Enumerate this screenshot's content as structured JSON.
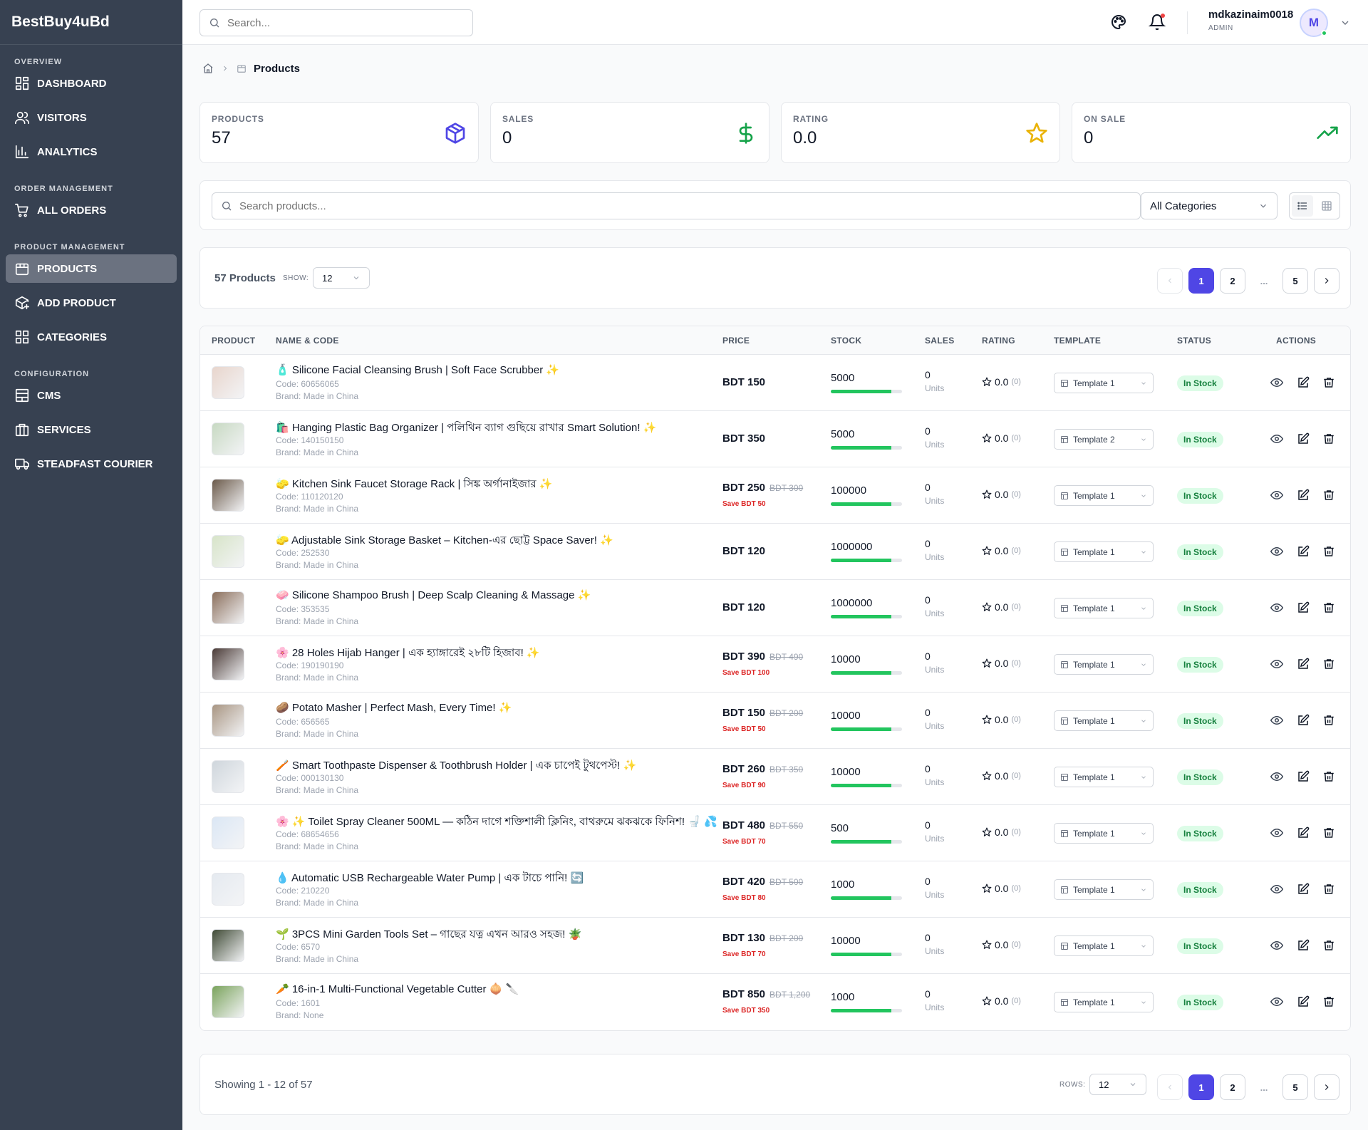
{
  "app": {
    "brand": "BestBuy4uBd"
  },
  "sidebar": {
    "sections": [
      {
        "title": "OVERVIEW",
        "items": [
          {
            "label": "DASHBOARD",
            "icon": "dashboard-icon"
          },
          {
            "label": "VISITORS",
            "icon": "users-icon"
          },
          {
            "label": "ANALYTICS",
            "icon": "bar-chart-icon"
          }
        ]
      },
      {
        "title": "ORDER MANAGEMENT",
        "items": [
          {
            "label": "ALL ORDERS",
            "icon": "cart-icon"
          }
        ]
      },
      {
        "title": "PRODUCT MANAGEMENT",
        "items": [
          {
            "label": "PRODUCTS",
            "icon": "package-icon",
            "active": true
          },
          {
            "label": "ADD PRODUCT",
            "icon": "package-plus-icon"
          },
          {
            "label": "CATEGORIES",
            "icon": "grid-icon"
          }
        ]
      },
      {
        "title": "CONFIGURATION",
        "items": [
          {
            "label": "CMS",
            "icon": "layout-icon"
          },
          {
            "label": "SERVICES",
            "icon": "store-icon"
          },
          {
            "label": "STEADFAST COURIER",
            "icon": "truck-icon"
          }
        ]
      }
    ]
  },
  "topbar": {
    "search_placeholder": "Search...",
    "user_name": "mdkazinaim0018",
    "user_role": "ADMIN",
    "avatar_initial": "M"
  },
  "breadcrumb": {
    "current": "Products"
  },
  "stats": [
    {
      "label": "PRODUCTS",
      "value": "57",
      "icon": "box-icon",
      "color": "#4f46e5"
    },
    {
      "label": "SALES",
      "value": "0",
      "icon": "dollar-icon",
      "color": "#16a34a"
    },
    {
      "label": "RATING",
      "value": "0.0",
      "icon": "star-icon",
      "color": "#eab308"
    },
    {
      "label": "ON SALE",
      "value": "0",
      "icon": "trending-up-icon",
      "color": "#16a34a"
    }
  ],
  "filters": {
    "search_placeholder": "Search products...",
    "category": "All Categories"
  },
  "pagination": {
    "count_label": "57 Products",
    "show_label": "SHOW:",
    "page_size": "12",
    "pages": [
      "1",
      "2",
      "...",
      "5"
    ],
    "current": "1"
  },
  "table": {
    "headers": [
      "PRODUCT",
      "NAME & CODE",
      "PRICE",
      "STOCK",
      "SALES",
      "RATING",
      "TEMPLATE",
      "STATUS",
      "ACTIONS"
    ],
    "rows": [
      {
        "name": "🧴 Silicone Facial Cleansing Brush | Soft Face Scrubber ✨",
        "code": "Code: 60656065",
        "brand": "Brand: Made in China",
        "price": "BDT 150",
        "old_price": "",
        "save": "",
        "stock": "5000",
        "stock_level": 0.85,
        "sales": "0",
        "units": "Units",
        "rating": "0.0",
        "rating_count": "(0)",
        "template": "Template 1",
        "status": "In Stock",
        "thumb": "#e8d5cc"
      },
      {
        "name": "🛍️ Hanging Plastic Bag Organizer | পলিথিন ব্যাগ গুছিয়ে রাখার Smart Solution! ✨",
        "code": "Code: 140150150",
        "brand": "Brand: Made in China",
        "price": "BDT 350",
        "old_price": "",
        "save": "",
        "stock": "5000",
        "stock_level": 0.85,
        "sales": "0",
        "units": "Units",
        "rating": "0.0",
        "rating_count": "(0)",
        "template": "Template 2",
        "status": "In Stock",
        "thumb": "#c7d9c2"
      },
      {
        "name": "🧽 Kitchen Sink Faucet Storage Rack | সিঙ্ক অর্গানাইজার ✨",
        "code": "Code: 110120120",
        "brand": "Brand: Made in China",
        "price": "BDT 250",
        "old_price": "BDT 300",
        "save": "Save BDT 50",
        "stock": "100000",
        "stock_level": 0.85,
        "sales": "0",
        "units": "Units",
        "rating": "0.0",
        "rating_count": "(0)",
        "template": "Template 1",
        "status": "In Stock",
        "thumb": "#6b5a4a"
      },
      {
        "name": "🧽 Adjustable Sink Storage Basket – Kitchen-এর ছোট্ট Space Saver! ✨",
        "code": "Code: 252530",
        "brand": "Brand: Made in China",
        "price": "BDT 120",
        "old_price": "",
        "save": "",
        "stock": "1000000",
        "stock_level": 0.85,
        "sales": "0",
        "units": "Units",
        "rating": "0.0",
        "rating_count": "(0)",
        "template": "Template 1",
        "status": "In Stock",
        "thumb": "#d7e4c8"
      },
      {
        "name": "🧼 Silicone Shampoo Brush | Deep Scalp Cleaning & Massage ✨",
        "code": "Code: 353535",
        "brand": "Brand: Made in China",
        "price": "BDT 120",
        "old_price": "",
        "save": "",
        "stock": "1000000",
        "stock_level": 0.85,
        "sales": "0",
        "units": "Units",
        "rating": "0.0",
        "rating_count": "(0)",
        "template": "Template 1",
        "status": "In Stock",
        "thumb": "#8b6f5c"
      },
      {
        "name": "🌸 28 Holes Hijab Hanger | এক হ্যাঙ্গারেই ২৮টি হিজাব! ✨",
        "code": "Code: 190190190",
        "brand": "Brand: Made in China",
        "price": "BDT 390",
        "old_price": "BDT 490",
        "save": "Save BDT 100",
        "stock": "10000",
        "stock_level": 0.85,
        "sales": "0",
        "units": "Units",
        "rating": "0.0",
        "rating_count": "(0)",
        "template": "Template 1",
        "status": "In Stock",
        "thumb": "#4a3a36"
      },
      {
        "name": "🥔 Potato Masher | Perfect Mash, Every Time! ✨",
        "code": "Code: 656565",
        "brand": "Brand: Made in China",
        "price": "BDT 150",
        "old_price": "BDT 200",
        "save": "Save BDT 50",
        "stock": "10000",
        "stock_level": 0.85,
        "sales": "0",
        "units": "Units",
        "rating": "0.0",
        "rating_count": "(0)",
        "template": "Template 1",
        "status": "In Stock",
        "thumb": "#a89582"
      },
      {
        "name": "🪥 Smart Toothpaste Dispenser & Toothbrush Holder | এক চাপেই টুথপেস্ট! ✨",
        "code": "Code: 000130130",
        "brand": "Brand: Made in China",
        "price": "BDT 260",
        "old_price": "BDT 350",
        "save": "Save BDT 90",
        "stock": "10000",
        "stock_level": 0.85,
        "sales": "0",
        "units": "Units",
        "rating": "0.0",
        "rating_count": "(0)",
        "template": "Template 1",
        "status": "In Stock",
        "thumb": "#cfd6dc"
      },
      {
        "name": "🌸 ✨ Toilet Spray Cleaner 500ML — কঠিন দাগে শক্তিশালী ক্লিনিং, বাথরুমে ঝকঝকে ফিনিশ! 🚽 💦",
        "code": "Code: 68654656",
        "brand": "Brand: Made in China",
        "price": "BDT 480",
        "old_price": "BDT 550",
        "save": "Save BDT 70",
        "stock": "500",
        "stock_level": 0.85,
        "sales": "0",
        "units": "Units",
        "rating": "0.0",
        "rating_count": "(0)",
        "template": "Template 1",
        "status": "In Stock",
        "thumb": "#dbe7f5"
      },
      {
        "name": "💧 Automatic USB Rechargeable Water Pump | এক টাচে পানি! 🔄",
        "code": "Code: 210220",
        "brand": "Brand: Made in China",
        "price": "BDT 420",
        "old_price": "BDT 500",
        "save": "Save BDT 80",
        "stock": "1000",
        "stock_level": 0.85,
        "sales": "0",
        "units": "Units",
        "rating": "0.0",
        "rating_count": "(0)",
        "template": "Template 1",
        "status": "In Stock",
        "thumb": "#e5eaf0"
      },
      {
        "name": "🌱 3PCS Mini Garden Tools Set – গাছের যত্ন এখন আরও সহজ! 🪴",
        "code": "Code: 6570",
        "brand": "Brand: Made in China",
        "price": "BDT 130",
        "old_price": "BDT 200",
        "save": "Save BDT 70",
        "stock": "10000",
        "stock_level": 0.85,
        "sales": "0",
        "units": "Units",
        "rating": "0.0",
        "rating_count": "(0)",
        "template": "Template 1",
        "status": "In Stock",
        "thumb": "#3f4a35"
      },
      {
        "name": "🥕 16-in-1 Multi-Functional Vegetable Cutter 🧅 🔪",
        "code": "Code: 1601",
        "brand": "Brand: None",
        "price": "BDT 850",
        "old_price": "BDT 1,200",
        "save": "Save BDT 350",
        "stock": "1000",
        "stock_level": 0.85,
        "sales": "0",
        "units": "Units",
        "rating": "0.0",
        "rating_count": "(0)",
        "template": "Template 1",
        "status": "In Stock",
        "thumb": "#7aa35c"
      }
    ]
  },
  "footer": {
    "showing": "Showing 1 - 12 of 57",
    "rows_label": "ROWS:",
    "rows_value": "12",
    "pages": [
      "1",
      "2",
      "...",
      "5"
    ]
  },
  "colors": {
    "sidebar_bg": "#374151",
    "accent": "#4f46e5",
    "success": "#22c55e"
  }
}
